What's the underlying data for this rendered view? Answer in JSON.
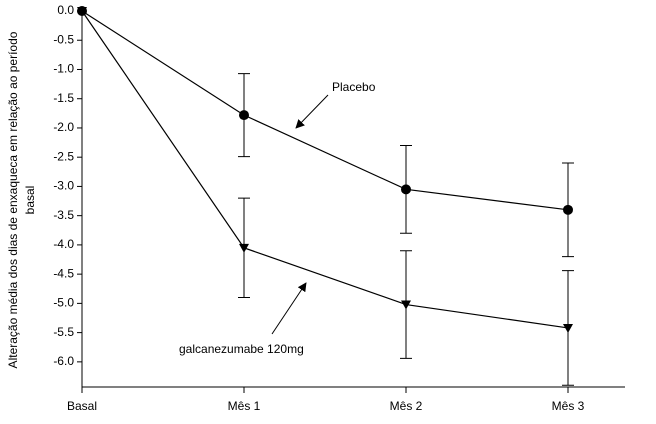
{
  "chart_data": {
    "type": "line",
    "y_label": [
      "Alteração média dos dias de enxaqueca  em relação ao período",
      "basal"
    ],
    "categories": [
      "Basal",
      "Mês 1",
      "Mês 2",
      "Mês 3"
    ],
    "series": [
      {
        "name": "Placebo",
        "color": "#000000",
        "marker": "circle",
        "values": [
          0,
          -1.78,
          -3.05,
          -3.4
        ],
        "errors": [
          null,
          0.71,
          0.75,
          0.8
        ]
      },
      {
        "name": "galcanezumabe 120mg",
        "color": "#000000",
        "marker": "triangle-down",
        "values": [
          0,
          -4.05,
          -5.02,
          -5.42
        ],
        "errors": [
          null,
          0.85,
          0.92,
          0.98
        ]
      }
    ],
    "ylim": [
      -6.43,
      0
    ],
    "yticks": [
      {
        "value": 0,
        "label": "0.0"
      },
      -0.5,
      {
        "value": -1,
        "label": "-1.0"
      },
      -1.5,
      {
        "value": -2,
        "label": "-2.0"
      },
      -2.5,
      {
        "value": -3,
        "label": "-3.0"
      },
      -3.5,
      {
        "value": -4,
        "label": "-4.0"
      },
      -4.5,
      {
        "value": -5,
        "label": "-5.0"
      },
      -5.5,
      {
        "value": -6,
        "label": "-6.0"
      }
    ],
    "grid": false
  }
}
